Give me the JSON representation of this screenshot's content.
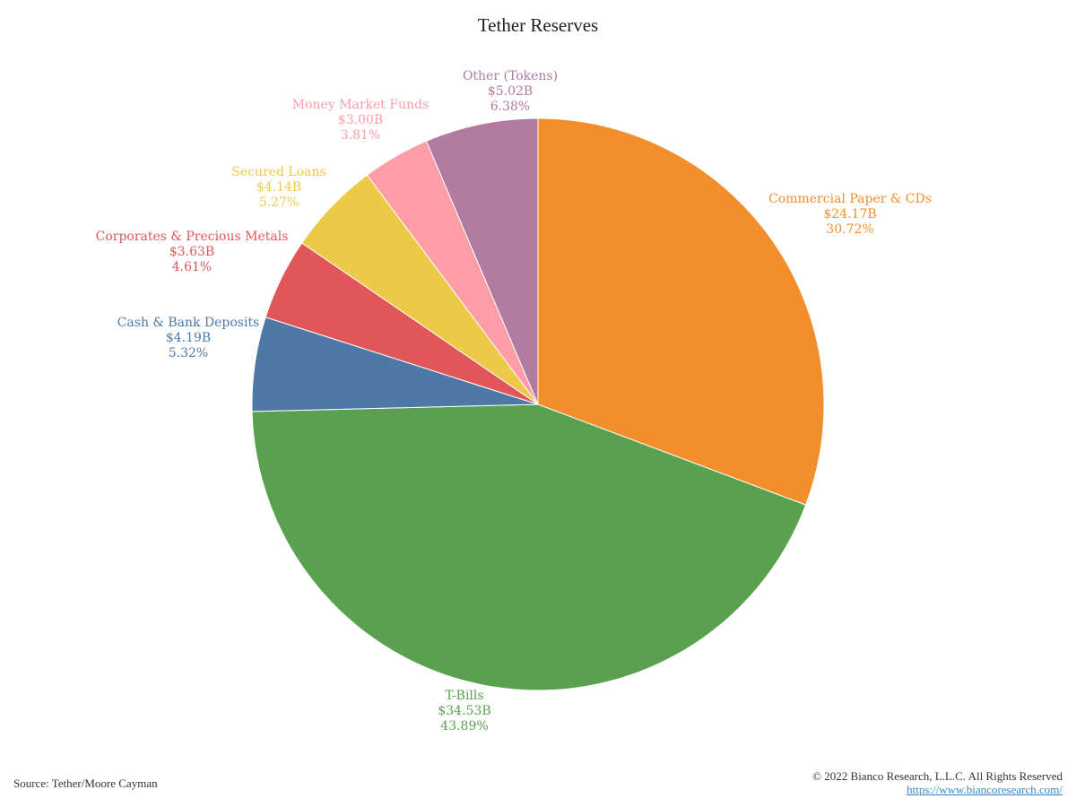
{
  "chart_data": {
    "type": "pie",
    "title": "Tether Reserves",
    "slices": [
      {
        "name": "Commercial Paper & CDs",
        "value_label": "$24.17B",
        "percent_label": "30.72%",
        "value": 24.17,
        "percent": 30.72,
        "color": "#F28E2B"
      },
      {
        "name": "T-Bills",
        "value_label": "$34.53B",
        "percent_label": "43.89%",
        "value": 34.53,
        "percent": 43.89,
        "color": "#59A14F"
      },
      {
        "name": "Cash & Bank Deposits",
        "value_label": "$4.19B",
        "percent_label": "5.32%",
        "value": 4.19,
        "percent": 5.32,
        "color": "#4E79A7"
      },
      {
        "name": "Corporates & Precious Metals",
        "value_label": "$3.63B",
        "percent_label": "4.61%",
        "value": 3.63,
        "percent": 4.61,
        "color": "#E15759"
      },
      {
        "name": "Secured Loans",
        "value_label": "$4.14B",
        "percent_label": "5.27%",
        "value": 4.14,
        "percent": 5.27,
        "color": "#EDC948"
      },
      {
        "name": "Money Market Funds",
        "value_label": "$3.00B",
        "percent_label": "3.81%",
        "value": 3.0,
        "percent": 3.81,
        "color": "#FF9DA7"
      },
      {
        "name": "Other (Tokens)",
        "value_label": "$5.02B",
        "percent_label": "6.38%",
        "value": 5.02,
        "percent": 6.38,
        "color": "#B07AA1"
      }
    ]
  },
  "footer": {
    "source": "Source: Tether/Moore Cayman",
    "copyright": "© 2022 Bianco Research, L.L.C. All Rights Reserved",
    "link": "https://www.biancoresearch.com/"
  }
}
